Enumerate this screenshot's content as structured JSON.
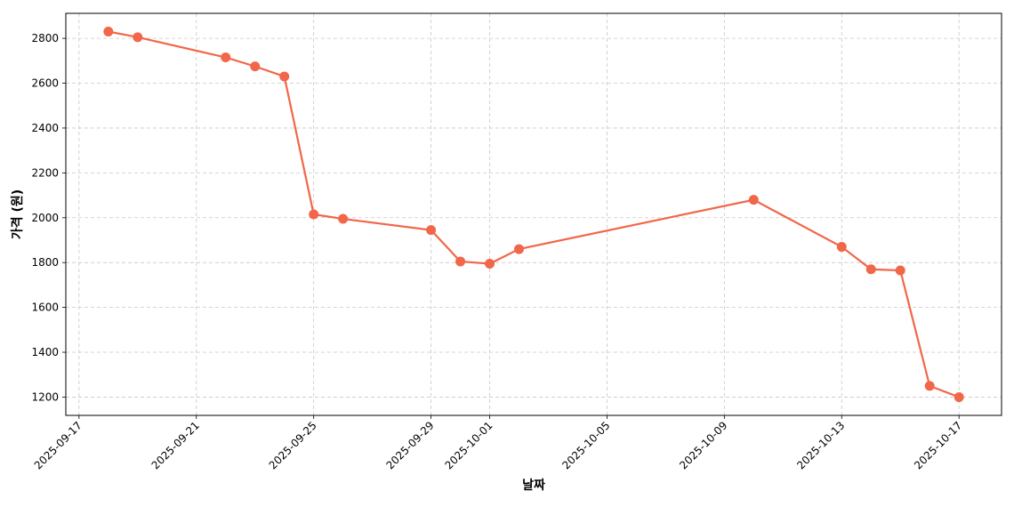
{
  "chart_data": {
    "type": "line",
    "x_label": "날짜",
    "y_label": "가격 (원)",
    "x": [
      "2025-09-18",
      "2025-09-19",
      "2025-09-22",
      "2025-09-23",
      "2025-09-24",
      "2025-09-25",
      "2025-09-26",
      "2025-09-29",
      "2025-09-30",
      "2025-10-01",
      "2025-10-02",
      "2025-10-10",
      "2025-10-13",
      "2025-10-14",
      "2025-10-15",
      "2025-10-16",
      "2025-10-17"
    ],
    "series": [
      {
        "name": "가격",
        "color": "#f26649",
        "values": [
          2830,
          2805,
          2715,
          2675,
          2630,
          2015,
          1995,
          1945,
          1805,
          1795,
          1860,
          2080,
          1870,
          1770,
          1765,
          1250,
          1200
        ]
      }
    ],
    "xlim": [
      "2025-09-16T13:12",
      "2025-10-18T10:48"
    ],
    "xticks": [
      "2025-09-17",
      "2025-09-21",
      "2025-09-25",
      "2025-09-29",
      "2025-10-01",
      "2025-10-05",
      "2025-10-09",
      "2025-10-13",
      "2025-10-17"
    ],
    "ylim": [
      1118.5,
      2911.5
    ],
    "yticks": [
      1200,
      1400,
      1600,
      1800,
      2000,
      2200,
      2400,
      2600,
      2800
    ],
    "grid": true
  }
}
